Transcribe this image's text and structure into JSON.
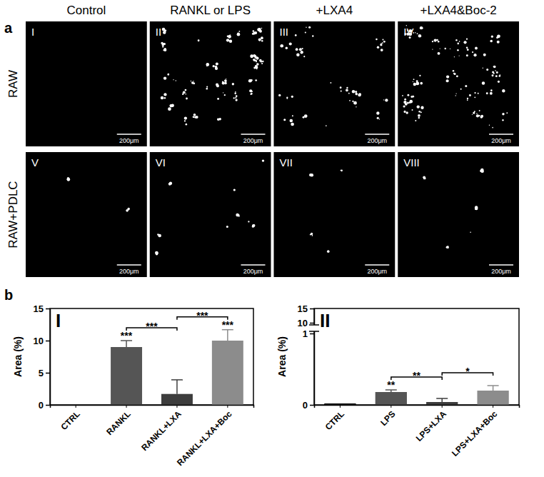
{
  "figure": {
    "panel_labels": [
      "a",
      "b"
    ],
    "columns": [
      "Control",
      "RANKL or LPS",
      "+LXA4",
      "+LXA4&Boc-2"
    ],
    "rows": [
      "RAW",
      "RAW+PDLC"
    ],
    "image_labels": [
      "I",
      "II",
      "III",
      "IV",
      "V",
      "VI",
      "VII",
      "VIII"
    ],
    "scale_bar": "200μm"
  },
  "chart_data": [
    {
      "type": "bar",
      "title": "I",
      "y_label": "Area (%)",
      "categories": [
        "CTRL",
        "RANKL",
        "RANKL+LXA",
        "RANKL+LXA+Boc"
      ],
      "values": [
        0,
        9.0,
        1.7,
        10.0
      ],
      "errors": [
        0,
        1.0,
        2.2,
        1.7
      ],
      "colors": [
        "#000000",
        "#555555",
        "#3d3d3d",
        "#8c8c8c"
      ],
      "ylim": [
        0,
        15
      ],
      "yticks": [
        0,
        5,
        10,
        15
      ],
      "annotations": [
        {
          "text": "***",
          "on": "RANKL"
        },
        {
          "text": "***",
          "on": "RANKL+LXA+Boc"
        },
        {
          "text": "***",
          "between": [
            "RANKL",
            "RANKL+LXA"
          ]
        },
        {
          "text": "***",
          "between": [
            "RANKL+LXA",
            "RANKL+LXA+Boc"
          ]
        }
      ]
    },
    {
      "type": "bar",
      "title": "II",
      "y_label": "Area (%)",
      "categories": [
        "CTRL",
        "LPS",
        "LPS+LXA",
        "LPS+LXA+Boc"
      ],
      "values": [
        0.02,
        0.18,
        0.04,
        0.2
      ],
      "errors": [
        0,
        0.03,
        0.05,
        0.07
      ],
      "colors": [
        "#000000",
        "#555555",
        "#3d3d3d",
        "#8c8c8c"
      ],
      "ylim": [
        0,
        15
      ],
      "ybreak": [
        1,
        10
      ],
      "yticks": [
        0,
        1,
        10,
        15
      ],
      "annotations": [
        {
          "text": "**",
          "on": "LPS"
        },
        {
          "text": "**",
          "between": [
            "LPS",
            "LPS+LXA"
          ]
        },
        {
          "text": "*",
          "between": [
            "LPS+LXA",
            "LPS+LXA+Boc"
          ]
        }
      ]
    }
  ]
}
